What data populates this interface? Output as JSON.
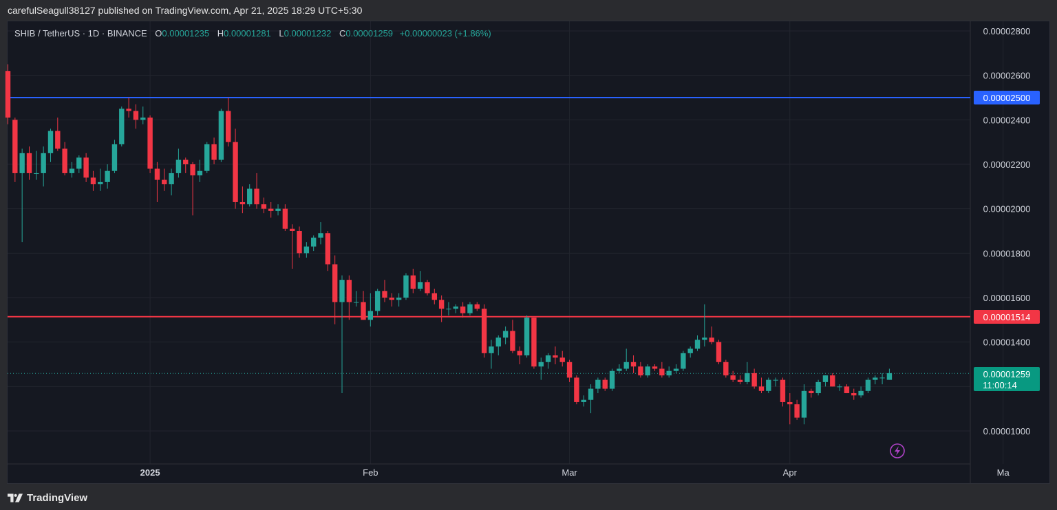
{
  "header": {
    "published_text": "carefulSeagull38127 published on TradingView.com, Apr 21, 2025 18:29 UTC+5:30"
  },
  "footer": {
    "brand": "TradingView"
  },
  "legend": {
    "symbol": "SHIB / TetherUS · 1D · BINANCE",
    "open_label": "O",
    "open": "0.00001235",
    "high_label": "H",
    "high": "0.00001281",
    "low_label": "L",
    "low": "0.00001232",
    "close_label": "C",
    "close": "0.00001259",
    "change": "+0.00000023 (+1.86%)"
  },
  "colors": {
    "up": "#26a69a",
    "down": "#f23645",
    "resistance": "#2962ff",
    "support": "#f23645",
    "grid": "#22252e",
    "axis_text": "#d1d4dc"
  },
  "price_badges": {
    "resistance": "0.00002500",
    "support": "0.00001514",
    "last": "0.00001259",
    "countdown": "11:00:14"
  },
  "chart_data": {
    "type": "candlestick",
    "symbol": "SHIB / TetherUS",
    "interval": "1D",
    "exchange": "BINANCE",
    "y_range": [
      8.5e-06,
      2.9e-05
    ],
    "y_ticks": [
      "0.00002800",
      "0.00002600",
      "0.00002400",
      "0.00002200",
      "0.00002000",
      "0.00001800",
      "0.00001600",
      "0.00001400",
      "0.00001000"
    ],
    "y_tick_values": [
      2.8e-05,
      2.6e-05,
      2.4e-05,
      2.2e-05,
      2e-05,
      1.8e-05,
      1.6e-05,
      1.4e-05,
      1e-05
    ],
    "x_labels": [
      {
        "label": "2025",
        "index": 20
      },
      {
        "label": "Feb",
        "index": 51
      },
      {
        "label": "Mar",
        "index": 79
      },
      {
        "label": "Apr",
        "index": 110
      },
      {
        "label": "Ma",
        "index": 140
      }
    ],
    "horizontal_lines": [
      {
        "value": 2.5e-05,
        "color": "#2962ff"
      },
      {
        "value": 1.514e-05,
        "color": "#f23645"
      }
    ],
    "last_price": 1.259e-05,
    "candles": [
      [
        2.62e-05,
        2.65e-05,
        2.38e-05,
        2.41e-05
      ],
      [
        2.4e-05,
        2.41e-05,
        2.12e-05,
        2.16e-05
      ],
      [
        2.16e-05,
        2.27e-05,
        1.85e-05,
        2.25e-05
      ],
      [
        2.25e-05,
        2.28e-05,
        2.13e-05,
        2.16e-05
      ],
      [
        2.16e-05,
        2.26e-05,
        2.13e-05,
        2.16e-05
      ],
      [
        2.16e-05,
        2.28e-05,
        2.1e-05,
        2.25e-05
      ],
      [
        2.25e-05,
        2.36e-05,
        2.21e-05,
        2.35e-05
      ],
      [
        2.35e-05,
        2.41e-05,
        2.26e-05,
        2.27e-05
      ],
      [
        2.27e-05,
        2.3e-05,
        2.15e-05,
        2.16e-05
      ],
      [
        2.16e-05,
        2.21e-05,
        2.14e-05,
        2.18e-05
      ],
      [
        2.18e-05,
        2.24e-05,
        2.16e-05,
        2.23e-05
      ],
      [
        2.23e-05,
        2.25e-05,
        2.12e-05,
        2.14e-05
      ],
      [
        2.14e-05,
        2.17e-05,
        2.08e-05,
        2.11e-05
      ],
      [
        2.11e-05,
        2.18e-05,
        2.08e-05,
        2.12e-05
      ],
      [
        2.12e-05,
        2.2e-05,
        2.09e-05,
        2.17e-05
      ],
      [
        2.17e-05,
        2.31e-05,
        2.16e-05,
        2.29e-05
      ],
      [
        2.29e-05,
        2.46e-05,
        2.28e-05,
        2.45e-05
      ],
      [
        2.45e-05,
        2.5e-05,
        2.41e-05,
        2.44e-05
      ],
      [
        2.44e-05,
        2.47e-05,
        2.36e-05,
        2.4e-05
      ],
      [
        2.4e-05,
        2.46e-05,
        2.38e-05,
        2.41e-05
      ],
      [
        2.41e-05,
        2.42e-05,
        2.16e-05,
        2.18e-05
      ],
      [
        2.18e-05,
        2.21e-05,
        2.03e-05,
        2.13e-05
      ],
      [
        2.13e-05,
        2.18e-05,
        2.08e-05,
        2.11e-05
      ],
      [
        2.11e-05,
        2.18e-05,
        2.06e-05,
        2.16e-05
      ],
      [
        2.16e-05,
        2.27e-05,
        2.14e-05,
        2.22e-05
      ],
      [
        2.22e-05,
        2.23e-05,
        2.16e-05,
        2.2e-05
      ],
      [
        2.2e-05,
        2.21e-05,
        1.97e-05,
        2.15e-05
      ],
      [
        2.15e-05,
        2.22e-05,
        2.12e-05,
        2.17e-05
      ],
      [
        2.17e-05,
        2.3e-05,
        2.16e-05,
        2.29e-05
      ],
      [
        2.29e-05,
        2.32e-05,
        2.2e-05,
        2.22e-05
      ],
      [
        2.22e-05,
        2.45e-05,
        2.21e-05,
        2.44e-05
      ],
      [
        2.44e-05,
        2.5e-05,
        2.28e-05,
        2.3e-05
      ],
      [
        2.3e-05,
        2.36e-05,
        2e-05,
        2.03e-05
      ],
      [
        2.03e-05,
        2.1e-05,
        1.98e-05,
        2.02e-05
      ],
      [
        2.02e-05,
        2.11e-05,
        2.01e-05,
        2.09e-05
      ],
      [
        2.09e-05,
        2.16e-05,
        2e-05,
        2.02e-05
      ],
      [
        2.02e-05,
        2.05e-05,
        1.98e-05,
        2e-05
      ],
      [
        2e-05,
        2.03e-05,
        1.96e-05,
        1.99e-05
      ],
      [
        1.99e-05,
        2.02e-05,
        1.97e-05,
        2e-05
      ],
      [
        2e-05,
        2.02e-05,
        1.9e-05,
        1.91e-05
      ],
      [
        1.91e-05,
        1.93e-05,
        1.73e-05,
        1.9e-05
      ],
      [
        1.9e-05,
        1.92e-05,
        1.78e-05,
        1.8e-05
      ],
      [
        1.8e-05,
        1.85e-05,
        1.78e-05,
        1.83e-05
      ],
      [
        1.83e-05,
        1.88e-05,
        1.81e-05,
        1.87e-05
      ],
      [
        1.87e-05,
        1.94e-05,
        1.84e-05,
        1.89e-05
      ],
      [
        1.89e-05,
        1.9e-05,
        1.72e-05,
        1.75e-05
      ],
      [
        1.75e-05,
        1.79e-05,
        1.48e-05,
        1.58e-05
      ],
      [
        1.58e-05,
        1.7e-05,
        1.17e-05,
        1.68e-05
      ],
      [
        1.68e-05,
        1.7e-05,
        1.5e-05,
        1.58e-05
      ],
      [
        1.58e-05,
        1.63e-05,
        1.56e-05,
        1.58e-05
      ],
      [
        1.58e-05,
        1.63e-05,
        1.5e-05,
        1.5e-05
      ],
      [
        1.5e-05,
        1.62e-05,
        1.47e-05,
        1.54e-05
      ],
      [
        1.54e-05,
        1.64e-05,
        1.52e-05,
        1.63e-05
      ],
      [
        1.63e-05,
        1.68e-05,
        1.58e-05,
        1.6e-05
      ],
      [
        1.6e-05,
        1.62e-05,
        1.56e-05,
        1.59e-05
      ],
      [
        1.59e-05,
        1.62e-05,
        1.56e-05,
        1.6e-05
      ],
      [
        1.6e-05,
        1.71e-05,
        1.59e-05,
        1.7e-05
      ],
      [
        1.7e-05,
        1.73e-05,
        1.62e-05,
        1.64e-05
      ],
      [
        1.64e-05,
        1.72e-05,
        1.63e-05,
        1.67e-05
      ],
      [
        1.67e-05,
        1.68e-05,
        1.61e-05,
        1.62e-05
      ],
      [
        1.62e-05,
        1.64e-05,
        1.57e-05,
        1.59e-05
      ],
      [
        1.59e-05,
        1.61e-05,
        1.49e-05,
        1.55e-05
      ],
      [
        1.55e-05,
        1.58e-05,
        1.52e-05,
        1.55e-05
      ],
      [
        1.55e-05,
        1.57e-05,
        1.53e-05,
        1.56e-05
      ],
      [
        1.56e-05,
        1.58e-05,
        1.51e-05,
        1.53e-05
      ],
      [
        1.53e-05,
        1.58e-05,
        1.52e-05,
        1.57e-05
      ],
      [
        1.57e-05,
        1.58e-05,
        1.54e-05,
        1.55e-05
      ],
      [
        1.55e-05,
        1.57e-05,
        1.33e-05,
        1.35e-05
      ],
      [
        1.35e-05,
        1.41e-05,
        1.28e-05,
        1.38e-05
      ],
      [
        1.38e-05,
        1.43e-05,
        1.34e-05,
        1.42e-05
      ],
      [
        1.42e-05,
        1.47e-05,
        1.39e-05,
        1.45e-05
      ],
      [
        1.45e-05,
        1.5e-05,
        1.35e-05,
        1.36e-05
      ],
      [
        1.36e-05,
        1.38e-05,
        1.3e-05,
        1.34e-05
      ],
      [
        1.34e-05,
        1.52e-05,
        1.33e-05,
        1.51e-05
      ],
      [
        1.51e-05,
        1.51e-05,
        1.28e-05,
        1.29e-05
      ],
      [
        1.29e-05,
        1.33e-05,
        1.23e-05,
        1.31e-05
      ],
      [
        1.31e-05,
        1.35e-05,
        1.28e-05,
        1.34e-05
      ],
      [
        1.34e-05,
        1.38e-05,
        1.3e-05,
        1.33e-05
      ],
      [
        1.33e-05,
        1.36e-05,
        1.29e-05,
        1.31e-05
      ],
      [
        1.31e-05,
        1.32e-05,
        1.22e-05,
        1.24e-05
      ],
      [
        1.24e-05,
        1.25e-05,
        1.12e-05,
        1.13e-05
      ],
      [
        1.13e-05,
        1.16e-05,
        1.11e-05,
        1.14e-05
      ],
      [
        1.14e-05,
        1.21e-05,
        1.08e-05,
        1.19e-05
      ],
      [
        1.19e-05,
        1.24e-05,
        1.17e-05,
        1.23e-05
      ],
      [
        1.23e-05,
        1.24e-05,
        1.18e-05,
        1.19e-05
      ],
      [
        1.19e-05,
        1.28e-05,
        1.18e-05,
        1.27e-05
      ],
      [
        1.27e-05,
        1.3e-05,
        1.26e-05,
        1.28e-05
      ],
      [
        1.28e-05,
        1.37e-05,
        1.27e-05,
        1.31e-05
      ],
      [
        1.31e-05,
        1.34e-05,
        1.26e-05,
        1.29e-05
      ],
      [
        1.29e-05,
        1.31e-05,
        1.24e-05,
        1.25e-05
      ],
      [
        1.25e-05,
        1.3e-05,
        1.24e-05,
        1.29e-05
      ],
      [
        1.29e-05,
        1.3e-05,
        1.27e-05,
        1.28e-05
      ],
      [
        1.28e-05,
        1.31e-05,
        1.24e-05,
        1.25e-05
      ],
      [
        1.25e-05,
        1.29e-05,
        1.24e-05,
        1.27e-05
      ],
      [
        1.27e-05,
        1.3e-05,
        1.26e-05,
        1.28e-05
      ],
      [
        1.28e-05,
        1.36e-05,
        1.27e-05,
        1.35e-05
      ],
      [
        1.35e-05,
        1.38e-05,
        1.33e-05,
        1.37e-05
      ],
      [
        1.37e-05,
        1.43e-05,
        1.36e-05,
        1.41e-05
      ],
      [
        1.41e-05,
        1.57e-05,
        1.38e-05,
        1.42e-05
      ],
      [
        1.42e-05,
        1.47e-05,
        1.39e-05,
        1.4e-05
      ],
      [
        1.4e-05,
        1.41e-05,
        1.3e-05,
        1.31e-05
      ],
      [
        1.31e-05,
        1.32e-05,
        1.24e-05,
        1.25e-05
      ],
      [
        1.25e-05,
        1.27e-05,
        1.22e-05,
        1.23e-05
      ],
      [
        1.23e-05,
        1.25e-05,
        1.21e-05,
        1.22e-05
      ],
      [
        1.22e-05,
        1.31e-05,
        1.21e-05,
        1.26e-05
      ],
      [
        1.26e-05,
        1.28e-05,
        1.19e-05,
        1.2e-05
      ],
      [
        1.2e-05,
        1.24e-05,
        1.17e-05,
        1.18e-05
      ],
      [
        1.18e-05,
        1.24e-05,
        1.17e-05,
        1.23e-05
      ],
      [
        1.23e-05,
        1.24e-05,
        1.2e-05,
        1.23e-05
      ],
      [
        1.23e-05,
        1.24e-05,
        1.11e-05,
        1.13e-05
      ],
      [
        1.13e-05,
        1.17e-05,
        1.03e-05,
        1.12e-05
      ],
      [
        1.12e-05,
        1.14e-05,
        1.05e-05,
        1.06e-05
      ],
      [
        1.06e-05,
        1.21e-05,
        1.03e-05,
        1.18e-05
      ],
      [
        1.18e-05,
        1.19e-05,
        1.15e-05,
        1.17e-05
      ],
      [
        1.17e-05,
        1.23e-05,
        1.16e-05,
        1.22e-05
      ],
      [
        1.22e-05,
        1.25e-05,
        1.2e-05,
        1.25e-05
      ],
      [
        1.25e-05,
        1.26e-05,
        1.2e-05,
        1.2e-05
      ],
      [
        1.2e-05,
        1.21e-05,
        1.18e-05,
        1.2e-05
      ],
      [
        1.2e-05,
        1.21e-05,
        1.17e-05,
        1.17e-05
      ],
      [
        1.17e-05,
        1.19e-05,
        1.14e-05,
        1.16e-05
      ],
      [
        1.16e-05,
        1.2e-05,
        1.15e-05,
        1.18e-05
      ],
      [
        1.18e-05,
        1.24e-05,
        1.17e-05,
        1.23e-05
      ],
      [
        1.23e-05,
        1.25e-05,
        1.21e-05,
        1.24e-05
      ],
      [
        1.24e-05,
        1.26e-05,
        1.21e-05,
        1.24e-05
      ],
      [
        1.23e-05,
        1.28e-05,
        1.23e-05,
        1.26e-05
      ]
    ]
  }
}
